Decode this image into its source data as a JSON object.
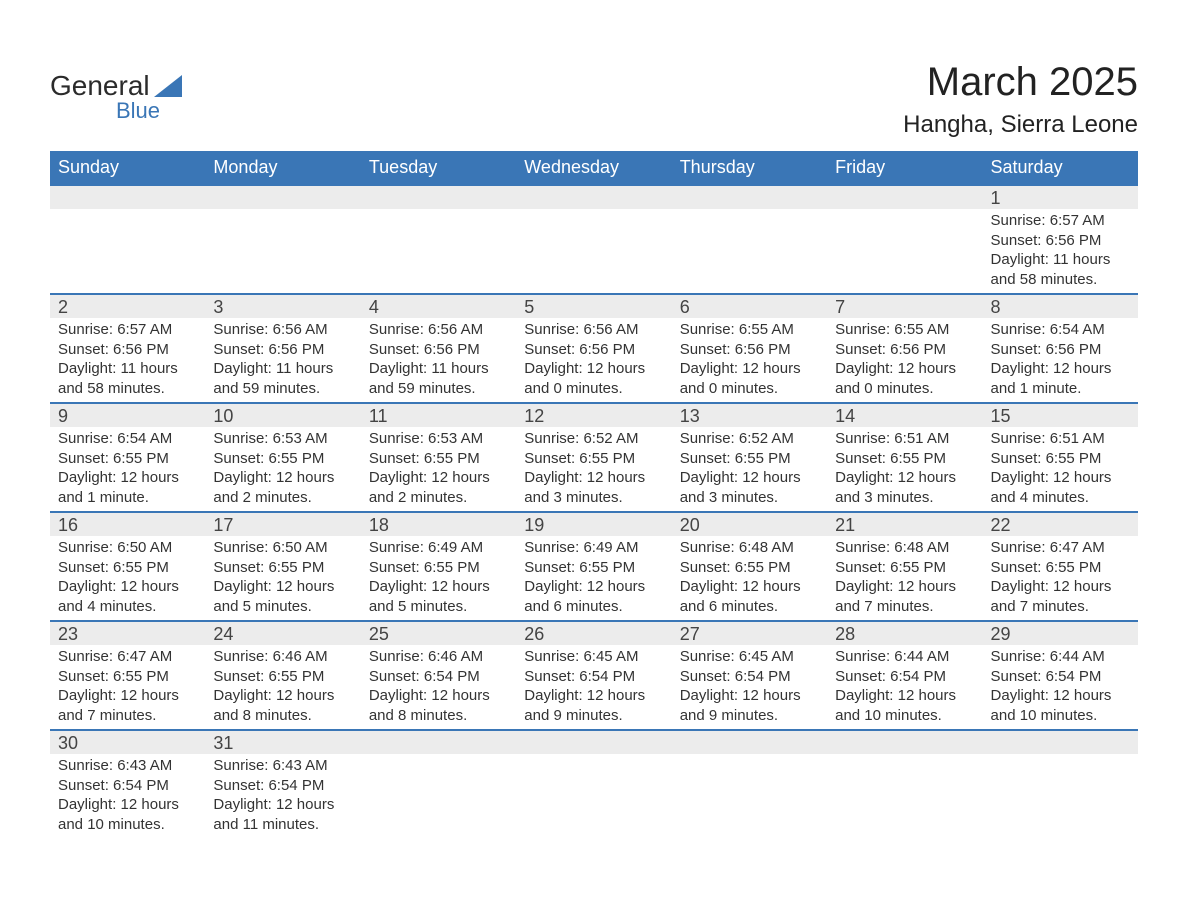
{
  "logo": {
    "text_top": "General",
    "text_bottom": "Blue",
    "triangle_color": "#3a76b6",
    "text_color_top": "#2b2b2b",
    "text_color_bottom": "#3a76b6"
  },
  "title": {
    "month": "March 2025",
    "location": "Hangha, Sierra Leone",
    "month_fontsize": 40,
    "location_fontsize": 24
  },
  "colors": {
    "header_bg": "#3a76b6",
    "header_text": "#ffffff",
    "daynum_bg": "#ececec",
    "row_divider": "#3a76b6",
    "body_text": "#333333",
    "background": "#ffffff"
  },
  "typography": {
    "font_family": "Arial",
    "header_fontsize": 18,
    "daynum_fontsize": 18,
    "detail_fontsize": 15
  },
  "layout": {
    "columns": 7,
    "weeks": 6
  },
  "weekdays": [
    "Sunday",
    "Monday",
    "Tuesday",
    "Wednesday",
    "Thursday",
    "Friday",
    "Saturday"
  ],
  "weeks": [
    [
      null,
      null,
      null,
      null,
      null,
      null,
      {
        "day": "1",
        "sunrise": "Sunrise: 6:57 AM",
        "sunset": "Sunset: 6:56 PM",
        "dl1": "Daylight: 11 hours",
        "dl2": "and 58 minutes."
      }
    ],
    [
      {
        "day": "2",
        "sunrise": "Sunrise: 6:57 AM",
        "sunset": "Sunset: 6:56 PM",
        "dl1": "Daylight: 11 hours",
        "dl2": "and 58 minutes."
      },
      {
        "day": "3",
        "sunrise": "Sunrise: 6:56 AM",
        "sunset": "Sunset: 6:56 PM",
        "dl1": "Daylight: 11 hours",
        "dl2": "and 59 minutes."
      },
      {
        "day": "4",
        "sunrise": "Sunrise: 6:56 AM",
        "sunset": "Sunset: 6:56 PM",
        "dl1": "Daylight: 11 hours",
        "dl2": "and 59 minutes."
      },
      {
        "day": "5",
        "sunrise": "Sunrise: 6:56 AM",
        "sunset": "Sunset: 6:56 PM",
        "dl1": "Daylight: 12 hours",
        "dl2": "and 0 minutes."
      },
      {
        "day": "6",
        "sunrise": "Sunrise: 6:55 AM",
        "sunset": "Sunset: 6:56 PM",
        "dl1": "Daylight: 12 hours",
        "dl2": "and 0 minutes."
      },
      {
        "day": "7",
        "sunrise": "Sunrise: 6:55 AM",
        "sunset": "Sunset: 6:56 PM",
        "dl1": "Daylight: 12 hours",
        "dl2": "and 0 minutes."
      },
      {
        "day": "8",
        "sunrise": "Sunrise: 6:54 AM",
        "sunset": "Sunset: 6:56 PM",
        "dl1": "Daylight: 12 hours",
        "dl2": "and 1 minute."
      }
    ],
    [
      {
        "day": "9",
        "sunrise": "Sunrise: 6:54 AM",
        "sunset": "Sunset: 6:55 PM",
        "dl1": "Daylight: 12 hours",
        "dl2": "and 1 minute."
      },
      {
        "day": "10",
        "sunrise": "Sunrise: 6:53 AM",
        "sunset": "Sunset: 6:55 PM",
        "dl1": "Daylight: 12 hours",
        "dl2": "and 2 minutes."
      },
      {
        "day": "11",
        "sunrise": "Sunrise: 6:53 AM",
        "sunset": "Sunset: 6:55 PM",
        "dl1": "Daylight: 12 hours",
        "dl2": "and 2 minutes."
      },
      {
        "day": "12",
        "sunrise": "Sunrise: 6:52 AM",
        "sunset": "Sunset: 6:55 PM",
        "dl1": "Daylight: 12 hours",
        "dl2": "and 3 minutes."
      },
      {
        "day": "13",
        "sunrise": "Sunrise: 6:52 AM",
        "sunset": "Sunset: 6:55 PM",
        "dl1": "Daylight: 12 hours",
        "dl2": "and 3 minutes."
      },
      {
        "day": "14",
        "sunrise": "Sunrise: 6:51 AM",
        "sunset": "Sunset: 6:55 PM",
        "dl1": "Daylight: 12 hours",
        "dl2": "and 3 minutes."
      },
      {
        "day": "15",
        "sunrise": "Sunrise: 6:51 AM",
        "sunset": "Sunset: 6:55 PM",
        "dl1": "Daylight: 12 hours",
        "dl2": "and 4 minutes."
      }
    ],
    [
      {
        "day": "16",
        "sunrise": "Sunrise: 6:50 AM",
        "sunset": "Sunset: 6:55 PM",
        "dl1": "Daylight: 12 hours",
        "dl2": "and 4 minutes."
      },
      {
        "day": "17",
        "sunrise": "Sunrise: 6:50 AM",
        "sunset": "Sunset: 6:55 PM",
        "dl1": "Daylight: 12 hours",
        "dl2": "and 5 minutes."
      },
      {
        "day": "18",
        "sunrise": "Sunrise: 6:49 AM",
        "sunset": "Sunset: 6:55 PM",
        "dl1": "Daylight: 12 hours",
        "dl2": "and 5 minutes."
      },
      {
        "day": "19",
        "sunrise": "Sunrise: 6:49 AM",
        "sunset": "Sunset: 6:55 PM",
        "dl1": "Daylight: 12 hours",
        "dl2": "and 6 minutes."
      },
      {
        "day": "20",
        "sunrise": "Sunrise: 6:48 AM",
        "sunset": "Sunset: 6:55 PM",
        "dl1": "Daylight: 12 hours",
        "dl2": "and 6 minutes."
      },
      {
        "day": "21",
        "sunrise": "Sunrise: 6:48 AM",
        "sunset": "Sunset: 6:55 PM",
        "dl1": "Daylight: 12 hours",
        "dl2": "and 7 minutes."
      },
      {
        "day": "22",
        "sunrise": "Sunrise: 6:47 AM",
        "sunset": "Sunset: 6:55 PM",
        "dl1": "Daylight: 12 hours",
        "dl2": "and 7 minutes."
      }
    ],
    [
      {
        "day": "23",
        "sunrise": "Sunrise: 6:47 AM",
        "sunset": "Sunset: 6:55 PM",
        "dl1": "Daylight: 12 hours",
        "dl2": "and 7 minutes."
      },
      {
        "day": "24",
        "sunrise": "Sunrise: 6:46 AM",
        "sunset": "Sunset: 6:55 PM",
        "dl1": "Daylight: 12 hours",
        "dl2": "and 8 minutes."
      },
      {
        "day": "25",
        "sunrise": "Sunrise: 6:46 AM",
        "sunset": "Sunset: 6:54 PM",
        "dl1": "Daylight: 12 hours",
        "dl2": "and 8 minutes."
      },
      {
        "day": "26",
        "sunrise": "Sunrise: 6:45 AM",
        "sunset": "Sunset: 6:54 PM",
        "dl1": "Daylight: 12 hours",
        "dl2": "and 9 minutes."
      },
      {
        "day": "27",
        "sunrise": "Sunrise: 6:45 AM",
        "sunset": "Sunset: 6:54 PM",
        "dl1": "Daylight: 12 hours",
        "dl2": "and 9 minutes."
      },
      {
        "day": "28",
        "sunrise": "Sunrise: 6:44 AM",
        "sunset": "Sunset: 6:54 PM",
        "dl1": "Daylight: 12 hours",
        "dl2": "and 10 minutes."
      },
      {
        "day": "29",
        "sunrise": "Sunrise: 6:44 AM",
        "sunset": "Sunset: 6:54 PM",
        "dl1": "Daylight: 12 hours",
        "dl2": "and 10 minutes."
      }
    ],
    [
      {
        "day": "30",
        "sunrise": "Sunrise: 6:43 AM",
        "sunset": "Sunset: 6:54 PM",
        "dl1": "Daylight: 12 hours",
        "dl2": "and 10 minutes."
      },
      {
        "day": "31",
        "sunrise": "Sunrise: 6:43 AM",
        "sunset": "Sunset: 6:54 PM",
        "dl1": "Daylight: 12 hours",
        "dl2": "and 11 minutes."
      },
      null,
      null,
      null,
      null,
      null
    ]
  ]
}
